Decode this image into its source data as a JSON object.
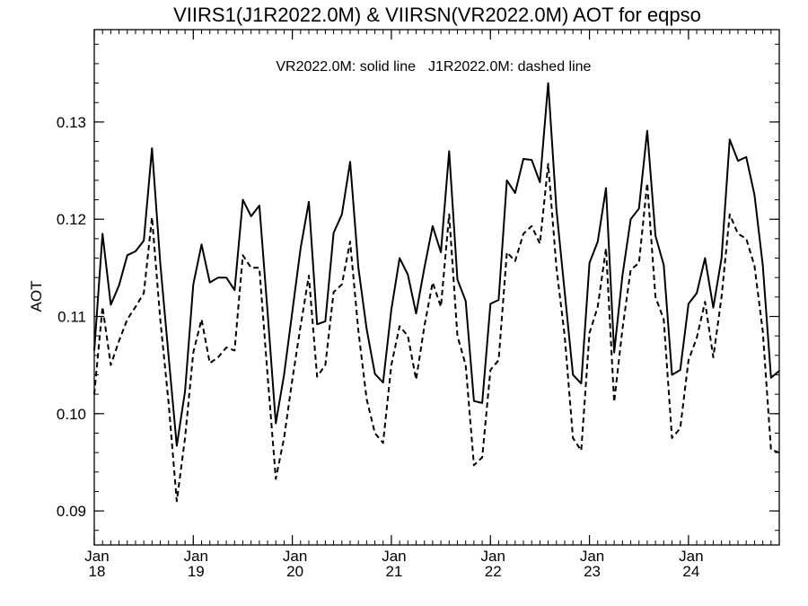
{
  "chart_data": {
    "type": "line",
    "title": "VIIRS1(J1R2022.0M) & VIIRSN(VR2022.0M)  AOT for eqpso",
    "legend_text": {
      "solid": "VR2022.0M: solid line",
      "dashed": "J1R2022.0M: dashed line"
    },
    "ylabel": "AOT",
    "xlabel": "",
    "ylim": [
      0.0865,
      0.1395
    ],
    "yticks": [
      0.09,
      0.1,
      0.11,
      0.12,
      0.13
    ],
    "ytick_labels": [
      "0.09",
      "0.10",
      "0.11",
      "0.12",
      "0.13"
    ],
    "x_unit": "months since Jan 2018",
    "xlim": [
      0,
      83
    ],
    "xticks": [
      {
        "month": "Jan",
        "year": "18",
        "x": 0
      },
      {
        "month": "Jan",
        "year": "19",
        "x": 12
      },
      {
        "month": "Jan",
        "year": "20",
        "x": 24
      },
      {
        "month": "Jan",
        "year": "21",
        "x": 36
      },
      {
        "month": "Jan",
        "year": "22",
        "x": 48
      },
      {
        "month": "Jan",
        "year": "23",
        "x": 60
      },
      {
        "month": "Jan",
        "year": "24",
        "x": 72
      }
    ],
    "grid": false,
    "series": [
      {
        "name": "VR2022.0M",
        "style": "solid",
        "x": [
          0,
          1,
          2,
          3,
          4,
          5,
          6,
          7,
          8,
          9,
          10,
          11,
          12,
          13,
          14,
          15,
          16,
          17,
          18,
          19,
          20,
          21,
          22,
          23,
          24,
          25,
          26,
          27,
          28,
          29,
          30,
          31,
          32,
          33,
          34,
          35,
          36,
          37,
          38,
          39,
          40,
          41,
          42,
          43,
          44,
          45,
          46,
          47,
          48,
          49,
          50,
          51,
          52,
          53,
          54,
          55,
          56,
          57,
          58,
          59,
          60,
          61,
          62,
          63,
          64,
          65,
          66,
          67,
          68,
          69,
          70,
          71,
          72,
          73,
          74,
          75,
          76,
          77,
          78,
          79,
          80,
          81,
          82,
          83
        ],
        "values": [
          0.1065,
          0.1185,
          0.1112,
          0.1132,
          0.1163,
          0.1167,
          0.1178,
          0.1273,
          0.1155,
          0.106,
          0.0967,
          0.1023,
          0.1133,
          0.1174,
          0.1135,
          0.114,
          0.114,
          0.1127,
          0.122,
          0.1203,
          0.1214,
          0.1105,
          0.099,
          0.104,
          0.1105,
          0.117,
          0.1218,
          0.1092,
          0.1095,
          0.1186,
          0.1205,
          0.1259,
          0.115,
          0.1087,
          0.1041,
          0.1032,
          0.1107,
          0.116,
          0.1143,
          0.1103,
          0.115,
          0.1193,
          0.1166,
          0.127,
          0.1138,
          0.1116,
          0.1013,
          0.1011,
          0.1113,
          0.1117,
          0.124,
          0.1227,
          0.1262,
          0.1261,
          0.1238,
          0.134,
          0.121,
          0.1125,
          0.104,
          0.1031,
          0.1155,
          0.1177,
          0.1232,
          0.1063,
          0.1142,
          0.12,
          0.1211,
          0.1291,
          0.1183,
          0.1153,
          0.104,
          0.1045,
          0.1113,
          0.1124,
          0.116,
          0.1109,
          0.116,
          0.1282,
          0.126,
          0.1264,
          0.1225,
          0.1153,
          0.1037,
          0.1044
        ]
      },
      {
        "name": "J1R2022.0M",
        "style": "dashed",
        "x": [
          0,
          1,
          2,
          3,
          4,
          5,
          6,
          7,
          8,
          9,
          10,
          11,
          12,
          13,
          14,
          15,
          16,
          17,
          18,
          19,
          20,
          21,
          22,
          23,
          24,
          25,
          26,
          27,
          28,
          29,
          30,
          31,
          32,
          33,
          34,
          35,
          36,
          37,
          38,
          39,
          40,
          41,
          42,
          43,
          44,
          45,
          46,
          47,
          48,
          49,
          50,
          51,
          52,
          53,
          54,
          55,
          56,
          57,
          58,
          59,
          60,
          61,
          62,
          63,
          64,
          65,
          66,
          67,
          68,
          69,
          70,
          71,
          72,
          73,
          74,
          75,
          76,
          77,
          78,
          79,
          80,
          81,
          82,
          83
        ],
        "values": [
          0.102,
          0.111,
          0.105,
          0.1075,
          0.1097,
          0.111,
          0.1124,
          0.1202,
          0.1097,
          0.1012,
          0.091,
          0.0975,
          0.1063,
          0.1097,
          0.1052,
          0.1058,
          0.1068,
          0.1065,
          0.1163,
          0.115,
          0.115,
          0.104,
          0.0933,
          0.0975,
          0.1035,
          0.109,
          0.1142,
          0.1038,
          0.105,
          0.1125,
          0.1133,
          0.1177,
          0.1085,
          0.1015,
          0.098,
          0.097,
          0.105,
          0.109,
          0.108,
          0.1035,
          0.109,
          0.1135,
          0.111,
          0.1205,
          0.108,
          0.105,
          0.0947,
          0.0955,
          0.1045,
          0.1055,
          0.1166,
          0.1157,
          0.1185,
          0.1193,
          0.1175,
          0.1257,
          0.115,
          0.108,
          0.0975,
          0.0962,
          0.1083,
          0.111,
          0.117,
          0.1012,
          0.1087,
          0.1148,
          0.1155,
          0.1237,
          0.112,
          0.1097,
          0.0975,
          0.0985,
          0.1055,
          0.1078,
          0.1115,
          0.1058,
          0.112,
          0.1205,
          0.1185,
          0.118,
          0.1152,
          0.1085,
          0.0963,
          0.096
        ]
      }
    ]
  }
}
